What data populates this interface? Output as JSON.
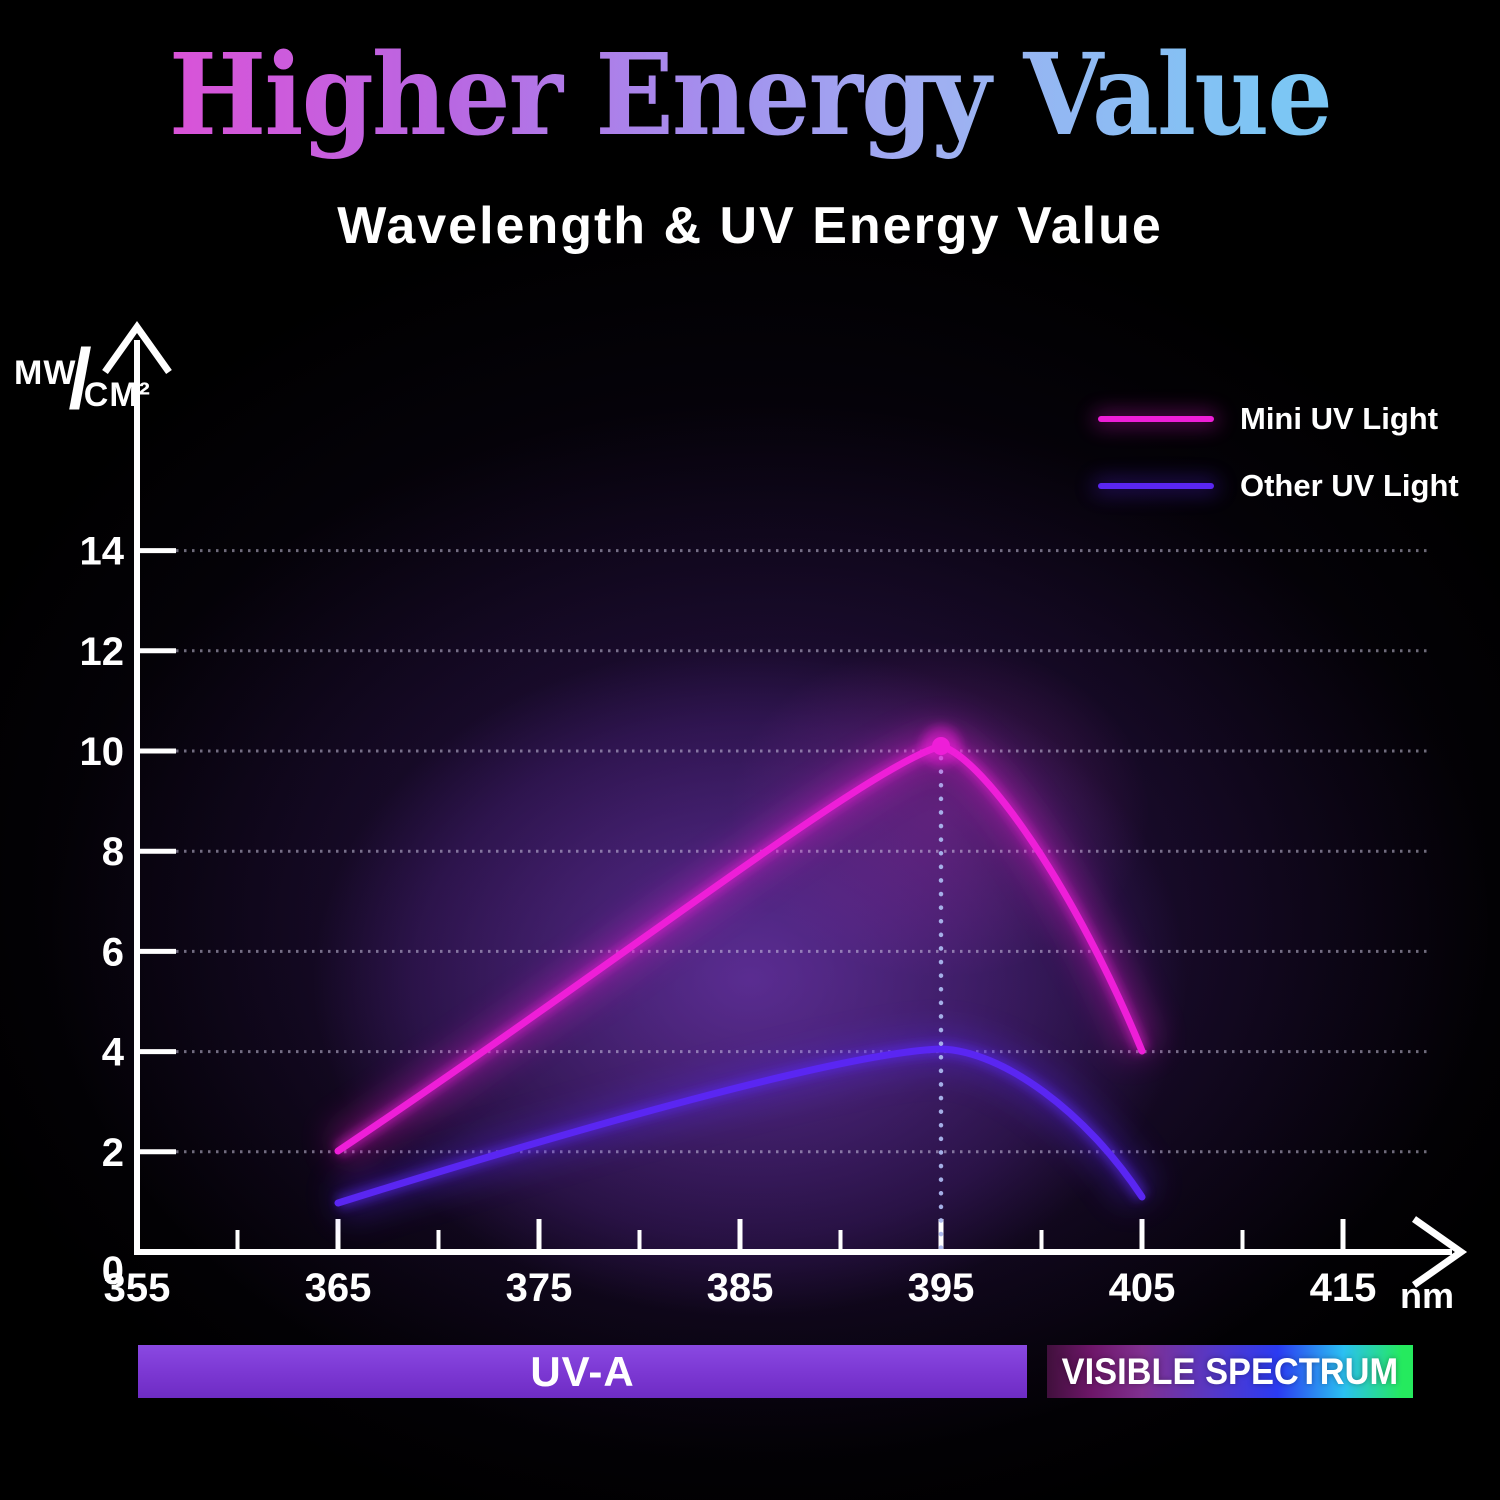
{
  "title": "Higher Energy Value",
  "subtitle": "Wavelength & UV Energy Value",
  "y_axis": {
    "unit_numerator": "MW",
    "unit_slash": "/",
    "unit_denominator": "CM²"
  },
  "x_axis": {
    "unit_label": "nm"
  },
  "legend": [
    {
      "label": "Mini UV Light",
      "color": "#ee1ed8"
    },
    {
      "label": "Other UV Light",
      "color": "#5a26f2"
    }
  ],
  "chart_data": {
    "type": "line",
    "title": "Wavelength & UV Energy Value",
    "xlabel": "Wavelength (nm)",
    "ylabel": "UV energy (MW/CM²)",
    "xlim": [
      355,
      420
    ],
    "ylim": [
      0,
      15.5
    ],
    "x_ticks": [
      355,
      365,
      375,
      385,
      395,
      405,
      415
    ],
    "x_minor_ticks": [
      360,
      370,
      380,
      390,
      400,
      410
    ],
    "y_ticks": [
      0,
      2,
      4,
      6,
      8,
      10,
      12,
      14
    ],
    "grid": "dotted horizontal gridlines at each labeled y value",
    "legend_position": "top-right",
    "series": [
      {
        "name": "Mini UV Light",
        "color": "#ee1ed8",
        "x": [
          365,
          375,
          385,
          395,
          405
        ],
        "values": [
          2,
          4.7,
          7.4,
          10.1,
          4
        ]
      },
      {
        "name": "Other UV Light",
        "color": "#5a26f2",
        "x": [
          365,
          375,
          385,
          395,
          405
        ],
        "values": [
          1,
          2.2,
          3.4,
          4,
          1.1
        ]
      }
    ],
    "annotations": {
      "peak_marker": {
        "series": "Mini UV Light",
        "x": 395,
        "y": 10.1,
        "style": "dot on peak with dotted vertical guide line down to x-axis"
      }
    }
  },
  "spectrum_bars": {
    "uva_label": "UV-A",
    "visible_label": "VISIBLE SPECTRUM",
    "uva_color": "#7b37d2",
    "visible_gradient": [
      "#40103c",
      "#803090",
      "#2b3bf2",
      "#2bc0f2",
      "#25ea5e"
    ]
  },
  "colors": {
    "background": "#000000",
    "axis": "#ffffff",
    "grid_dots": "#d9d4ee",
    "guide_dots": "#aab7ee",
    "title_gradient": [
      "#e04fd6",
      "#b967e2",
      "#9fa4f0",
      "#7cc6f4"
    ]
  }
}
